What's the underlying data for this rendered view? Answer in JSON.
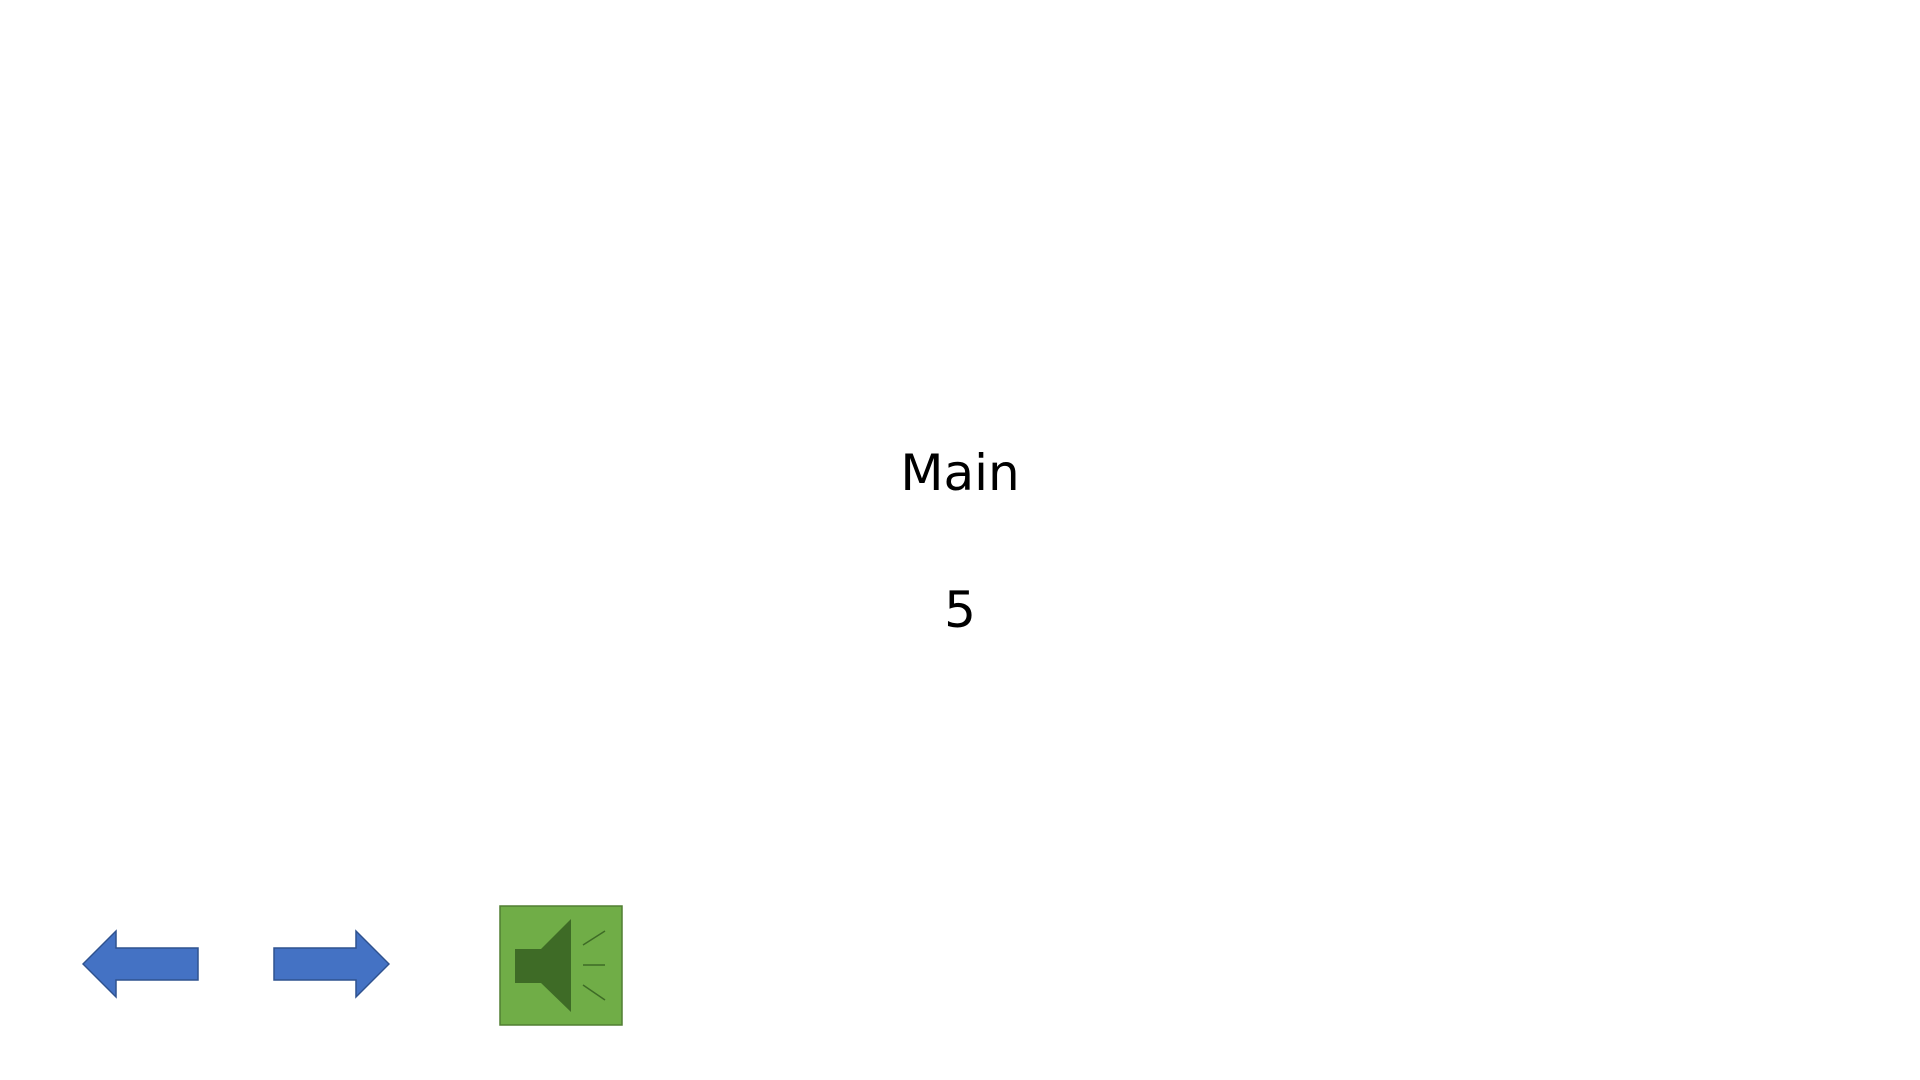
{
  "slide": {
    "title": "Main",
    "number": "5"
  },
  "controls": {
    "prev_icon": "left-arrow-icon",
    "next_icon": "right-arrow-icon",
    "sound_icon": "speaker-icon"
  },
  "colors": {
    "arrow_fill": "#4472C4",
    "arrow_stroke": "#2F528F",
    "sound_bg": "#70AD47",
    "sound_border": "#507E32",
    "speaker_fill": "#3E6B26"
  }
}
